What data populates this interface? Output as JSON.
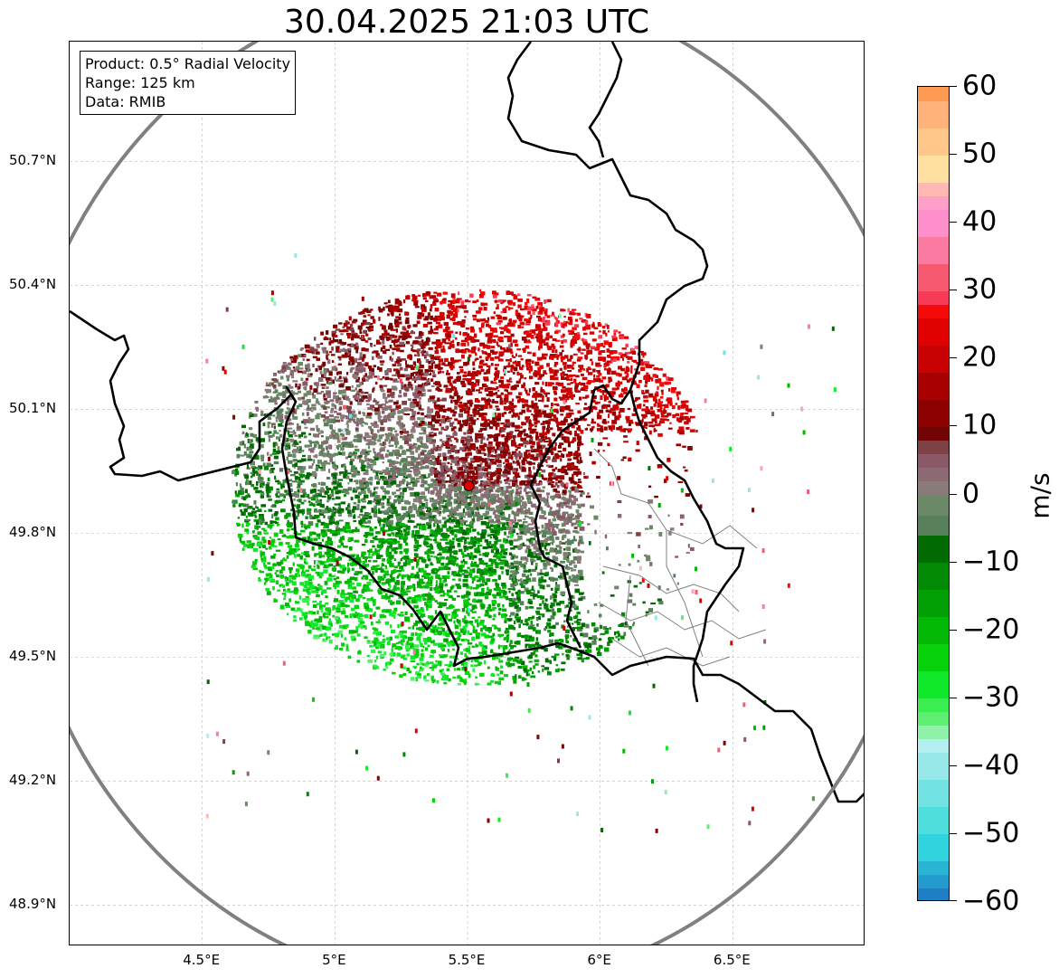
{
  "title": "30.04.2025 21:03 UTC",
  "info": {
    "product": "Product: 0.5° Radial Velocity",
    "range": "Range: 125 km",
    "data": "Data: RMIB"
  },
  "map": {
    "lon_min": 4.0,
    "lon_max": 7.0,
    "lat_min": 48.8,
    "lat_max": 50.99,
    "radar_site": {
      "lon": 5.505,
      "lat": 49.915
    },
    "range_km": 125
  },
  "lat_ticks": [
    {
      "value": 50.7,
      "label": "50.7°N"
    },
    {
      "value": 50.4,
      "label": "50.4°N"
    },
    {
      "value": 50.1,
      "label": "50.1°N"
    },
    {
      "value": 49.8,
      "label": "49.8°N"
    },
    {
      "value": 49.5,
      "label": "49.5°N"
    },
    {
      "value": 49.2,
      "label": "49.2°N"
    },
    {
      "value": 48.9,
      "label": "48.9°N"
    }
  ],
  "lon_ticks": [
    {
      "value": 4.5,
      "label": "4.5°E"
    },
    {
      "value": 5.0,
      "label": "5°E"
    },
    {
      "value": 5.5,
      "label": "5.5°E"
    },
    {
      "value": 6.0,
      "label": "6°E"
    },
    {
      "value": 6.5,
      "label": "6.5°E"
    }
  ],
  "colorbar": {
    "unit": "m/s",
    "min": -60,
    "max": 60,
    "ticks": [
      {
        "value": 60,
        "label": "60"
      },
      {
        "value": 50,
        "label": "50"
      },
      {
        "value": 40,
        "label": "40"
      },
      {
        "value": 30,
        "label": "30"
      },
      {
        "value": 20,
        "label": "20"
      },
      {
        "value": 10,
        "label": "10"
      },
      {
        "value": 0,
        "label": "0"
      },
      {
        "value": -10,
        "label": "−10"
      },
      {
        "value": -20,
        "label": "−20"
      },
      {
        "value": -30,
        "label": "−30"
      },
      {
        "value": -40,
        "label": "−40"
      },
      {
        "value": -50,
        "label": "−50"
      },
      {
        "value": -60,
        "label": "−60"
      }
    ],
    "segments": [
      {
        "from": -60,
        "to": -58,
        "color": "#1f7fc4"
      },
      {
        "from": -58,
        "to": -56,
        "color": "#239bcc"
      },
      {
        "from": -56,
        "to": -54,
        "color": "#29b4d4"
      },
      {
        "from": -54,
        "to": -50,
        "color": "#2fd4de"
      },
      {
        "from": -50,
        "to": -46,
        "color": "#4fdede"
      },
      {
        "from": -46,
        "to": -42,
        "color": "#72e2e2"
      },
      {
        "from": -42,
        "to": -38,
        "color": "#98e8ea"
      },
      {
        "from": -38,
        "to": -36,
        "color": "#b3eff0"
      },
      {
        "from": -36,
        "to": -34,
        "color": "#8ff0a8"
      },
      {
        "from": -34,
        "to": -32,
        "color": "#5cef72"
      },
      {
        "from": -32,
        "to": -30,
        "color": "#39ee4e"
      },
      {
        "from": -30,
        "to": -26,
        "color": "#10e82a"
      },
      {
        "from": -26,
        "to": -22,
        "color": "#07d10a"
      },
      {
        "from": -22,
        "to": -18,
        "color": "#04b806"
      },
      {
        "from": -18,
        "to": -14,
        "color": "#03a005"
      },
      {
        "from": -14,
        "to": -10,
        "color": "#028a04"
      },
      {
        "from": -10,
        "to": -6,
        "color": "#016b01"
      },
      {
        "from": -6,
        "to": -3,
        "color": "#57805a"
      },
      {
        "from": -3,
        "to": 0,
        "color": "#6b8867"
      },
      {
        "from": 0,
        "to": 2,
        "color": "#8a7a7a"
      },
      {
        "from": 2,
        "to": 4,
        "color": "#8c6a74"
      },
      {
        "from": 4,
        "to": 6,
        "color": "#8a5866"
      },
      {
        "from": 6,
        "to": 8,
        "color": "#7e4145"
      },
      {
        "from": 8,
        "to": 10,
        "color": "#730404"
      },
      {
        "from": 10,
        "to": 14,
        "color": "#8c0000"
      },
      {
        "from": 14,
        "to": 18,
        "color": "#a80000"
      },
      {
        "from": 18,
        "to": 22,
        "color": "#c80202"
      },
      {
        "from": 22,
        "to": 26,
        "color": "#e00000"
      },
      {
        "from": 26,
        "to": 28,
        "color": "#f50a0a"
      },
      {
        "from": 28,
        "to": 30,
        "color": "#f73a55"
      },
      {
        "from": 30,
        "to": 34,
        "color": "#f65a70"
      },
      {
        "from": 34,
        "to": 38,
        "color": "#fa7aa2"
      },
      {
        "from": 38,
        "to": 42,
        "color": "#ff8fcc"
      },
      {
        "from": 42,
        "to": 44,
        "color": "#ffa0c8"
      },
      {
        "from": 44,
        "to": 46,
        "color": "#ffb8b2"
      },
      {
        "from": 46,
        "to": 50,
        "color": "#ffe0a0"
      },
      {
        "from": 50,
        "to": 54,
        "color": "#ffc88a"
      },
      {
        "from": 54,
        "to": 58,
        "color": "#ffb37a"
      },
      {
        "from": 58,
        "to": 60,
        "color": "#ff9a55"
      }
    ]
  },
  "colors": {
    "range_ring": "#808080",
    "border": "#000000",
    "admin_border": "#808080",
    "grid": "#bbbbbb",
    "radar_marker": "#e00000"
  }
}
